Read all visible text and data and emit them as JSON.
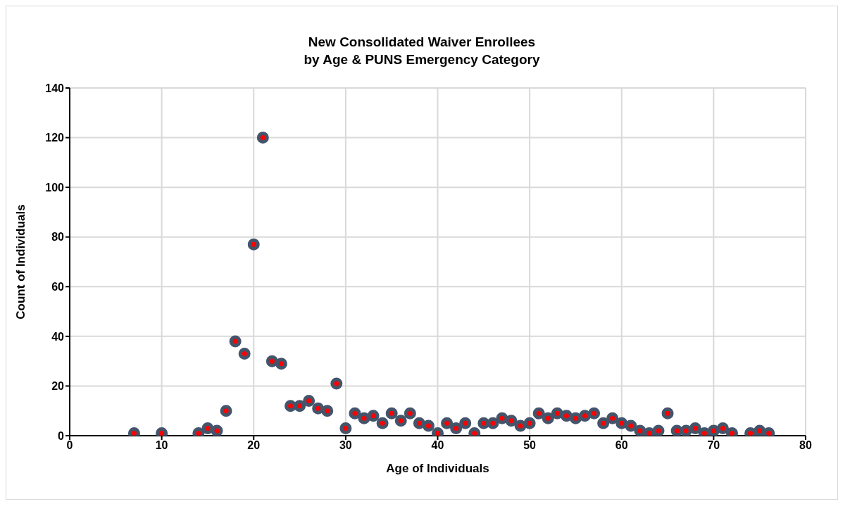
{
  "chart_data": {
    "type": "scatter",
    "title": "New Consolidated Waiver Enrollees\nby Age & PUNS Emergency Category",
    "xlabel": "Age of Individuals",
    "ylabel": "Count of Individuals",
    "x": [
      7,
      10,
      14,
      15,
      16,
      17,
      18,
      19,
      20,
      21,
      22,
      23,
      24,
      25,
      26,
      27,
      28,
      29,
      30,
      31,
      32,
      33,
      34,
      35,
      36,
      37,
      38,
      39,
      40,
      41,
      42,
      43,
      44,
      45,
      46,
      47,
      48,
      49,
      50,
      51,
      52,
      53,
      54,
      55,
      56,
      57,
      58,
      59,
      60,
      61,
      62,
      63,
      64,
      65,
      66,
      67,
      68,
      69,
      70,
      71,
      72,
      74,
      75,
      76
    ],
    "values": [
      1,
      1,
      1,
      3,
      2,
      10,
      38,
      33,
      77,
      120,
      30,
      29,
      12,
      12,
      14,
      11,
      10,
      21,
      3,
      9,
      7,
      8,
      5,
      9,
      6,
      9,
      5,
      4,
      1,
      5,
      3,
      5,
      1,
      5,
      5,
      7,
      6,
      4,
      5,
      9,
      7,
      9,
      8,
      7,
      8,
      9,
      5,
      7,
      5,
      4,
      2,
      1,
      2,
      9,
      2,
      2,
      3,
      1,
      2,
      3,
      1,
      1,
      2,
      1
    ],
    "color": "#44546a",
    "marker": "circle",
    "xlim": [
      0,
      80
    ],
    "xticks": [
      0,
      10,
      20,
      30,
      40,
      50,
      60,
      70,
      80
    ],
    "ylim": [
      0,
      140
    ],
    "yticks": [
      0,
      20,
      40,
      60,
      80,
      100,
      120,
      140
    ],
    "grid": true
  }
}
